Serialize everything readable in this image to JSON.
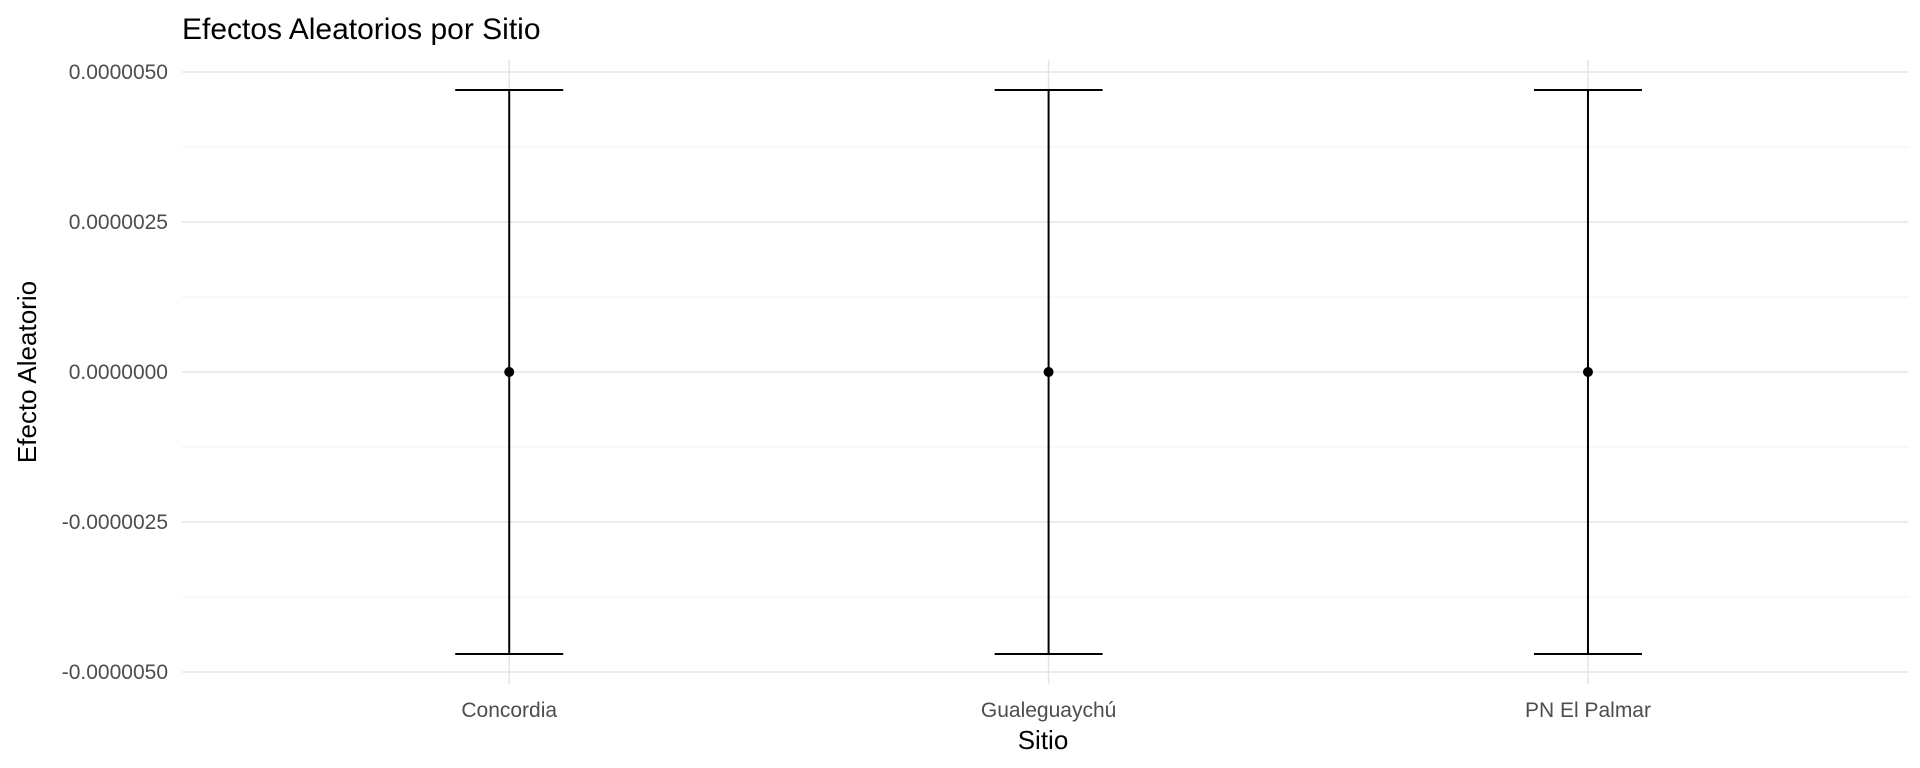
{
  "chart_data": {
    "type": "errorbar",
    "title": "Efectos Aleatorios por Sitio",
    "xlabel": "Sitio",
    "ylabel": "Efecto Aleatorio",
    "categories": [
      "Concordia",
      "Gualeguaychú",
      "PN El Palmar"
    ],
    "values": [
      0.0,
      0.0,
      0.0
    ],
    "lower": [
      -4.7e-06,
      -4.7e-06,
      -4.7e-06
    ],
    "upper": [
      4.7e-06,
      4.7e-06,
      4.7e-06
    ],
    "ylim": [
      -5.2e-06,
      5.2e-06
    ],
    "yticks": [
      -5e-06,
      -2.5e-06,
      0,
      2.5e-06,
      5e-06
    ],
    "ytick_labels": [
      "-0.0000050",
      "-0.0000025",
      "0.0000000",
      "0.0000025",
      "0.0000050"
    ],
    "grid": true,
    "legend": "none",
    "colors": {
      "marks": "#000000",
      "grid": "#e5e5e5",
      "tick_text": "#4d4d4d"
    }
  }
}
